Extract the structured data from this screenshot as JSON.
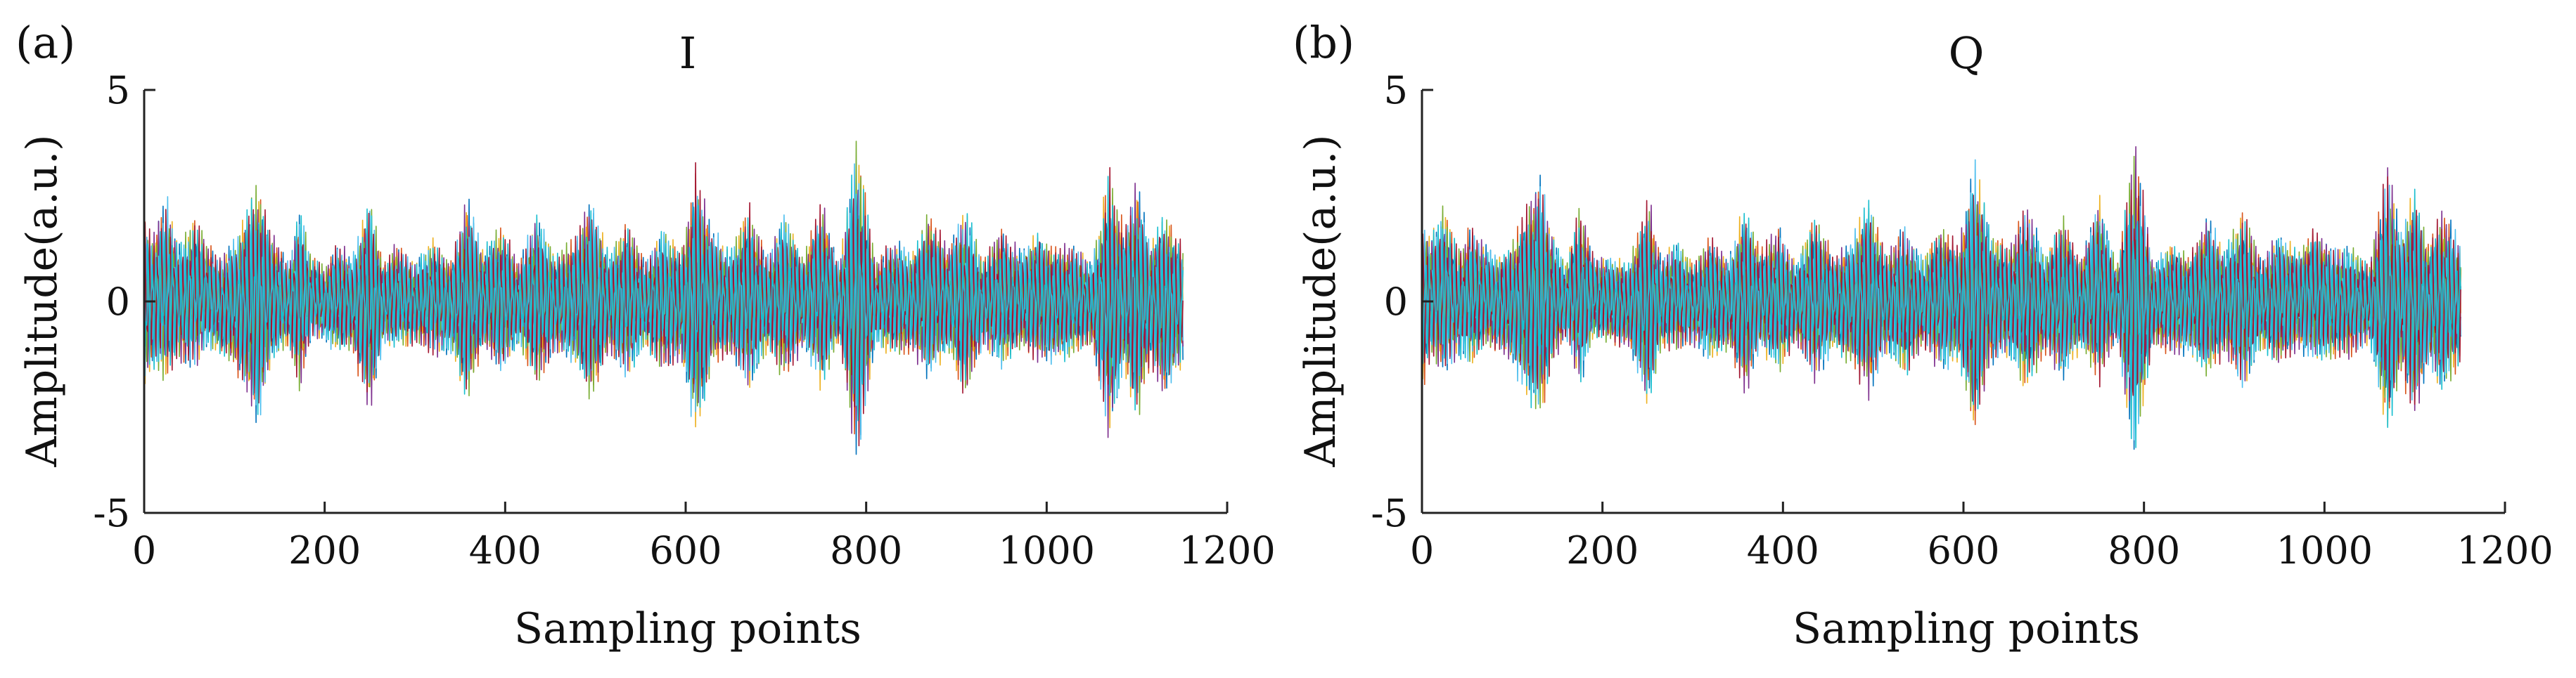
{
  "chart_data": [
    {
      "panel": "(a)",
      "type": "line",
      "title": "I",
      "xlabel": "Sampling points",
      "ylabel": "Amplitude(a.u.)",
      "xlim": [
        0,
        1200
      ],
      "ylim": [
        -5,
        5
      ],
      "xticks": [
        0,
        200,
        400,
        600,
        800,
        1000,
        1200
      ],
      "yticks": [
        -5,
        0,
        5
      ],
      "ytick_labels": [
        "-5",
        "0",
        "5"
      ],
      "grid": false,
      "n_points": 1152,
      "series_colors": [
        "#0072BD",
        "#D95319",
        "#EDB120",
        "#7E2F8E",
        "#77AC30",
        "#4DBEEE",
        "#A2142F",
        "#17BECF"
      ],
      "envelope": {
        "x": [
          0,
          10,
          25,
          40,
          55,
          70,
          85,
          100,
          115,
          125,
          140,
          160,
          172,
          185,
          200,
          215,
          230,
          250,
          265,
          280,
          300,
          320,
          340,
          358,
          375,
          395,
          415,
          435,
          455,
          475,
          495,
          515,
          535,
          555,
          575,
          595,
          612,
          630,
          650,
          670,
          690,
          710,
          730,
          750,
          770,
          790,
          810,
          830,
          850,
          870,
          890,
          910,
          930,
          950,
          970,
          990,
          1010,
          1030,
          1050,
          1070,
          1085,
          1100,
          1115,
          1130,
          1150
        ],
        "upper": [
          2.2,
          1.8,
          2.6,
          1.4,
          2.2,
          1.5,
          1.2,
          1.6,
          2.4,
          3.3,
          1.8,
          1.0,
          2.5,
          1.2,
          0.9,
          1.6,
          1.1,
          2.8,
          1.0,
          1.5,
          1.0,
          1.6,
          1.1,
          2.7,
          1.3,
          2.0,
          1.0,
          2.4,
          1.2,
          1.6,
          2.7,
          1.2,
          2.1,
          1.1,
          1.9,
          1.3,
          3.5,
          1.8,
          1.3,
          2.5,
          1.2,
          2.3,
          1.1,
          2.6,
          0.9,
          4.2,
          1.0,
          1.6,
          1.2,
          2.3,
          1.4,
          2.4,
          1.1,
          1.9,
          1.3,
          1.8,
          1.4,
          1.5,
          1.0,
          3.5,
          1.9,
          3.1,
          1.5,
          2.3,
          1.5
        ],
        "lower": [
          -2.3,
          -1.6,
          -2.1,
          -1.5,
          -1.8,
          -1.2,
          -1.4,
          -1.7,
          -2.5,
          -3.4,
          -1.6,
          -1.1,
          -2.3,
          -1.0,
          -1.0,
          -1.4,
          -1.2,
          -2.9,
          -1.1,
          -1.2,
          -1.1,
          -1.4,
          -1.3,
          -2.5,
          -1.2,
          -1.9,
          -1.1,
          -2.2,
          -1.3,
          -1.6,
          -2.5,
          -1.3,
          -2.0,
          -1.2,
          -1.8,
          -1.5,
          -3.5,
          -1.6,
          -1.4,
          -2.3,
          -1.3,
          -2.0,
          -1.2,
          -2.2,
          -1.0,
          -4.3,
          -1.1,
          -1.4,
          -1.3,
          -2.0,
          -1.3,
          -2.4,
          -1.2,
          -1.7,
          -1.2,
          -1.6,
          -1.5,
          -1.4,
          -1.1,
          -3.6,
          -1.8,
          -3.0,
          -1.6,
          -2.5,
          -1.6
        ]
      }
    },
    {
      "panel": "(b)",
      "type": "line",
      "title": "Q",
      "xlabel": "Sampling points",
      "ylabel": "Amplitude(a.u.)",
      "xlim": [
        0,
        1200
      ],
      "ylim": [
        -5,
        5
      ],
      "xticks": [
        0,
        200,
        400,
        600,
        800,
        1000,
        1200
      ],
      "yticks": [
        -5,
        0,
        5
      ],
      "ytick_labels": [
        "-5",
        "0",
        "5"
      ],
      "grid": false,
      "n_points": 1152,
      "series_colors": [
        "#0072BD",
        "#D95319",
        "#EDB120",
        "#7E2F8E",
        "#77AC30",
        "#4DBEEE",
        "#A2142F",
        "#17BECF"
      ],
      "envelope": {
        "x": [
          0,
          10,
          25,
          40,
          55,
          70,
          85,
          100,
          115,
          130,
          145,
          160,
          175,
          190,
          210,
          230,
          250,
          265,
          280,
          300,
          320,
          340,
          358,
          375,
          395,
          415,
          435,
          455,
          475,
          495,
          515,
          535,
          555,
          575,
          595,
          612,
          630,
          650,
          670,
          690,
          710,
          730,
          750,
          770,
          790,
          810,
          830,
          850,
          870,
          890,
          910,
          930,
          950,
          970,
          990,
          1010,
          1030,
          1050,
          1070,
          1085,
          1100,
          1115,
          1130,
          1150
        ],
        "upper": [
          2.1,
          1.7,
          2.5,
          1.3,
          2.0,
          1.4,
          1.2,
          1.5,
          2.4,
          3.4,
          1.7,
          1.0,
          2.5,
          1.2,
          1.1,
          1.0,
          2.8,
          1.1,
          1.6,
          1.0,
          1.7,
          1.1,
          2.5,
          1.3,
          1.9,
          1.0,
          2.3,
          1.2,
          1.5,
          2.6,
          1.2,
          2.0,
          1.1,
          2.0,
          1.4,
          3.6,
          1.8,
          1.4,
          2.5,
          1.2,
          2.2,
          1.1,
          2.7,
          0.9,
          4.2,
          1.0,
          1.5,
          1.2,
          2.2,
          1.3,
          2.4,
          1.1,
          1.8,
          1.3,
          1.9,
          1.4,
          1.4,
          1.0,
          3.5,
          1.8,
          3.0,
          1.5,
          2.4,
          1.6
        ],
        "lower": [
          -2.2,
          -1.5,
          -2.0,
          -1.4,
          -1.7,
          -1.2,
          -1.3,
          -1.6,
          -2.4,
          -3.2,
          -1.6,
          -1.0,
          -2.2,
          -1.0,
          -1.1,
          -1.2,
          -2.8,
          -1.2,
          -1.3,
          -1.1,
          -1.5,
          -1.2,
          -2.4,
          -1.2,
          -1.8,
          -1.1,
          -2.1,
          -1.2,
          -1.6,
          -2.4,
          -1.3,
          -2.0,
          -1.2,
          -1.8,
          -1.5,
          -3.5,
          -1.6,
          -1.4,
          -2.3,
          -1.3,
          -2.0,
          -1.2,
          -2.1,
          -1.0,
          -4.2,
          -1.1,
          -1.4,
          -1.3,
          -2.0,
          -1.3,
          -2.3,
          -1.2,
          -1.7,
          -1.2,
          -1.6,
          -1.5,
          -1.4,
          -1.1,
          -3.5,
          -1.8,
          -3.1,
          -1.6,
          -2.4,
          -1.6
        ]
      }
    }
  ]
}
